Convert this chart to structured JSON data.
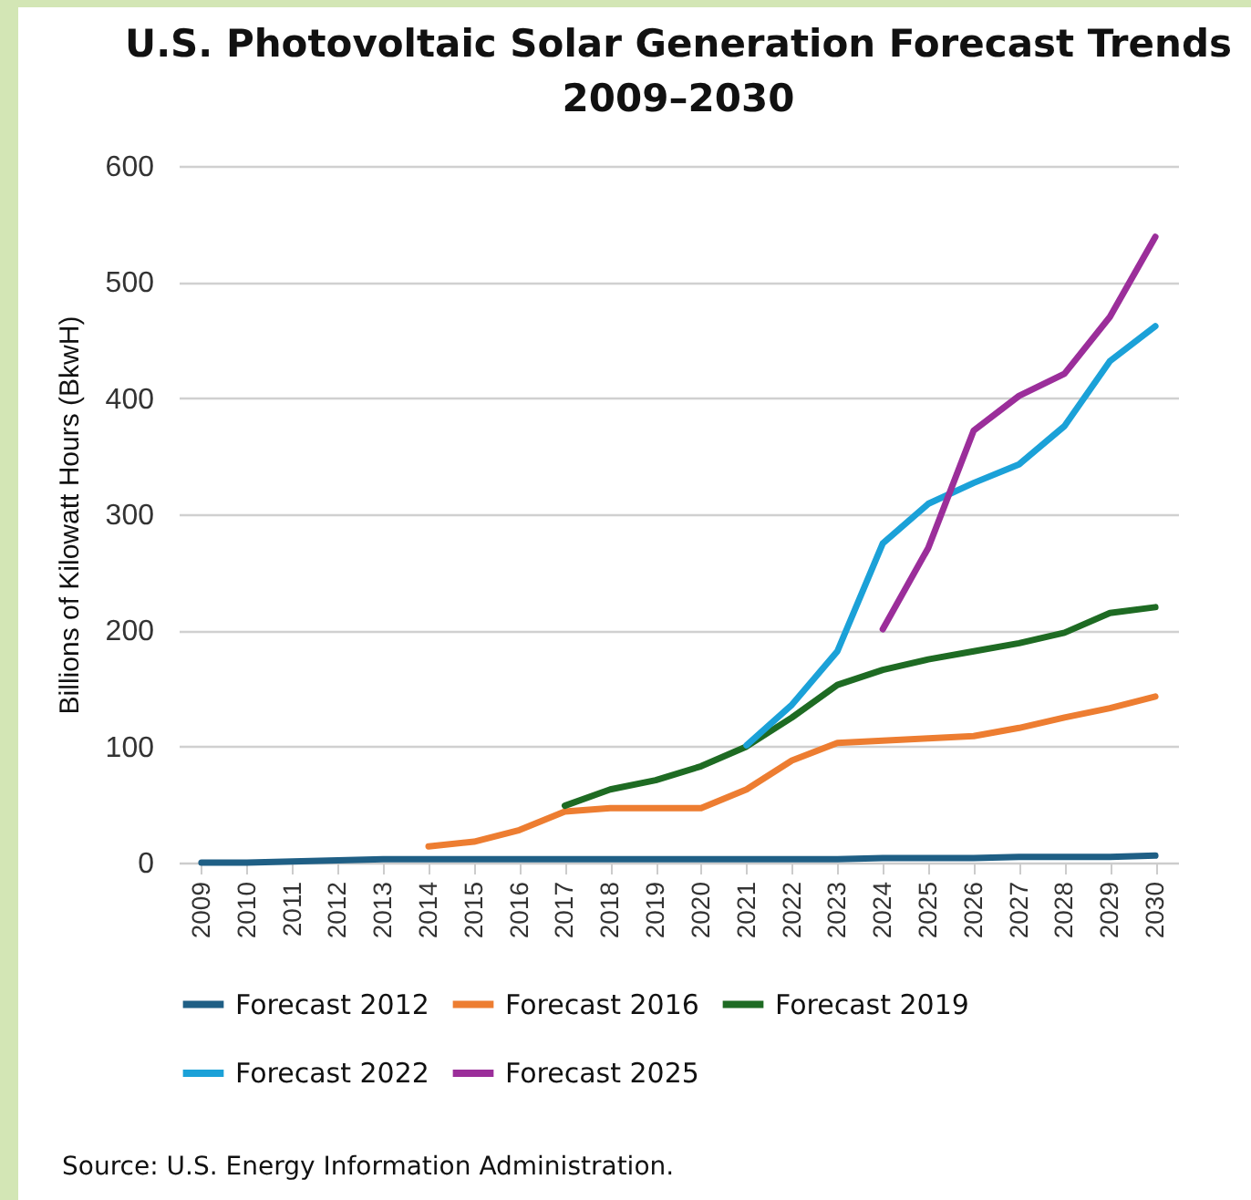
{
  "chart_data": {
    "type": "line",
    "title": "U.S. Photovoltaic Solar Generation Forecast Trends 2009–2030",
    "ylabel": "Billions of Kilowatt Hours (BkwH)",
    "categories": [
      "2009",
      "2010",
      "2011",
      "2012",
      "2013",
      "2014",
      "2015",
      "2016",
      "2017",
      "2018",
      "2019",
      "2020",
      "2021",
      "2022",
      "2023",
      "2024",
      "2025",
      "2026",
      "2027",
      "2028",
      "2029",
      "2030"
    ],
    "series": [
      {
        "name": "Forecast 2012",
        "color": "#1f5f85",
        "values": [
          0,
          0,
          1,
          2,
          3,
          3,
          3,
          3,
          3,
          3,
          3,
          3,
          3,
          3,
          3,
          4,
          4,
          4,
          5,
          5,
          5,
          6
        ]
      },
      {
        "name": "Forecast 2016",
        "color": "#ed7d31",
        "values": [
          null,
          null,
          null,
          null,
          null,
          14,
          18,
          28,
          44,
          47,
          47,
          47,
          63,
          88,
          103,
          105,
          107,
          109,
          116,
          125,
          133,
          143
        ]
      },
      {
        "name": "Forecast 2019",
        "color": "#1e6b23",
        "values": [
          null,
          null,
          null,
          null,
          null,
          null,
          null,
          null,
          49,
          63,
          71,
          83,
          100,
          125,
          153,
          166,
          175,
          182,
          189,
          198,
          215,
          220
        ]
      },
      {
        "name": "Forecast 2022",
        "color": "#1ba1d8",
        "values": [
          null,
          null,
          null,
          null,
          null,
          null,
          null,
          null,
          null,
          null,
          null,
          null,
          101,
          136,
          182,
          275,
          309,
          327,
          343,
          376,
          432,
          462
        ]
      },
      {
        "name": "Forecast 2025",
        "color": "#9b2e9a",
        "values": [
          null,
          null,
          null,
          null,
          null,
          null,
          null,
          null,
          null,
          null,
          null,
          null,
          null,
          null,
          null,
          201,
          271,
          372,
          402,
          421,
          470,
          539
        ]
      }
    ],
    "ylim": [
      0,
      600
    ],
    "yticks": [
      0,
      100,
      200,
      300,
      400,
      500,
      600
    ],
    "grid": "y",
    "legend": "bottom",
    "marker": "none",
    "line_style": "solid",
    "annotations": [
      "Source: U.S. Energy Information Administration."
    ]
  }
}
